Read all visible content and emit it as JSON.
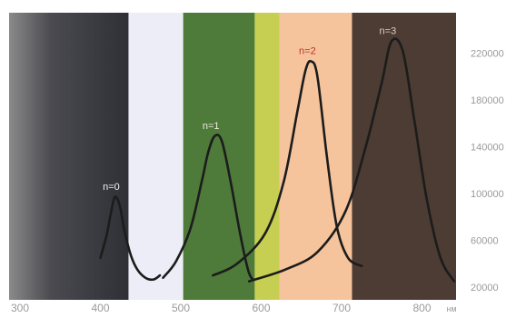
{
  "chart_data": {
    "type": "line",
    "title": "",
    "xlabel": "",
    "ylabel": "",
    "x_unit": "нм",
    "x_ticks": [
      300,
      400,
      500,
      600,
      700,
      800
    ],
    "y_ticks": [
      20000,
      60000,
      100000,
      140000,
      180000,
      220000
    ],
    "xlim": [
      300,
      850
    ],
    "ylim": [
      20000,
      240000
    ],
    "grid": false,
    "legend": "none",
    "background_bands": [
      {
        "from": 300,
        "to": 435,
        "color": "#3a3a40"
      },
      {
        "from": 435,
        "to": 503,
        "color": "#ededf7"
      },
      {
        "from": 503,
        "to": 592,
        "color": "#4e7a3a"
      },
      {
        "from": 592,
        "to": 623,
        "color": "#c7cf52"
      },
      {
        "from": 623,
        "to": 713,
        "color": "#f5c49c"
      },
      {
        "from": 713,
        "to": 850,
        "color": "#4c3c33"
      }
    ],
    "series": [
      {
        "name": "n=0",
        "color": "#1c1c1c",
        "points": [
          [
            400,
            45000
          ],
          [
            408,
            65000
          ],
          [
            413,
            83000
          ],
          [
            418,
            97000
          ],
          [
            424,
            90000
          ],
          [
            430,
            68000
          ],
          [
            438,
            47000
          ],
          [
            446,
            35000
          ],
          [
            456,
            28000
          ],
          [
            466,
            26500
          ],
          [
            474,
            30000
          ]
        ]
      },
      {
        "name": "n=1",
        "color": "#1c1c1c",
        "points": [
          [
            478,
            28000
          ],
          [
            494,
            42000
          ],
          [
            512,
            70000
          ],
          [
            526,
            110000
          ],
          [
            534,
            135000
          ],
          [
            542,
            149000
          ],
          [
            551,
            145000
          ],
          [
            562,
            110000
          ],
          [
            574,
            65000
          ],
          [
            584,
            34000
          ],
          [
            590,
            26000
          ]
        ]
      },
      {
        "name": "n=2",
        "color": "#1c1c1c",
        "points": [
          [
            540,
            30000
          ],
          [
            570,
            40000
          ],
          [
            605,
            66000
          ],
          [
            628,
            110000
          ],
          [
            645,
            170000
          ],
          [
            655,
            205000
          ],
          [
            662,
            213000
          ],
          [
            670,
            200000
          ],
          [
            682,
            130000
          ],
          [
            694,
            72000
          ],
          [
            708,
            45000
          ],
          [
            725,
            38000
          ]
        ]
      },
      {
        "name": "n=3",
        "color": "#1c1c1c",
        "points": [
          [
            585,
            25000
          ],
          [
            630,
            35000
          ],
          [
            670,
            50000
          ],
          [
            705,
            85000
          ],
          [
            730,
            140000
          ],
          [
            750,
            195000
          ],
          [
            762,
            230000
          ],
          [
            776,
            222000
          ],
          [
            790,
            165000
          ],
          [
            806,
            95000
          ],
          [
            823,
            45000
          ],
          [
            840,
            25000
          ]
        ]
      }
    ]
  }
}
